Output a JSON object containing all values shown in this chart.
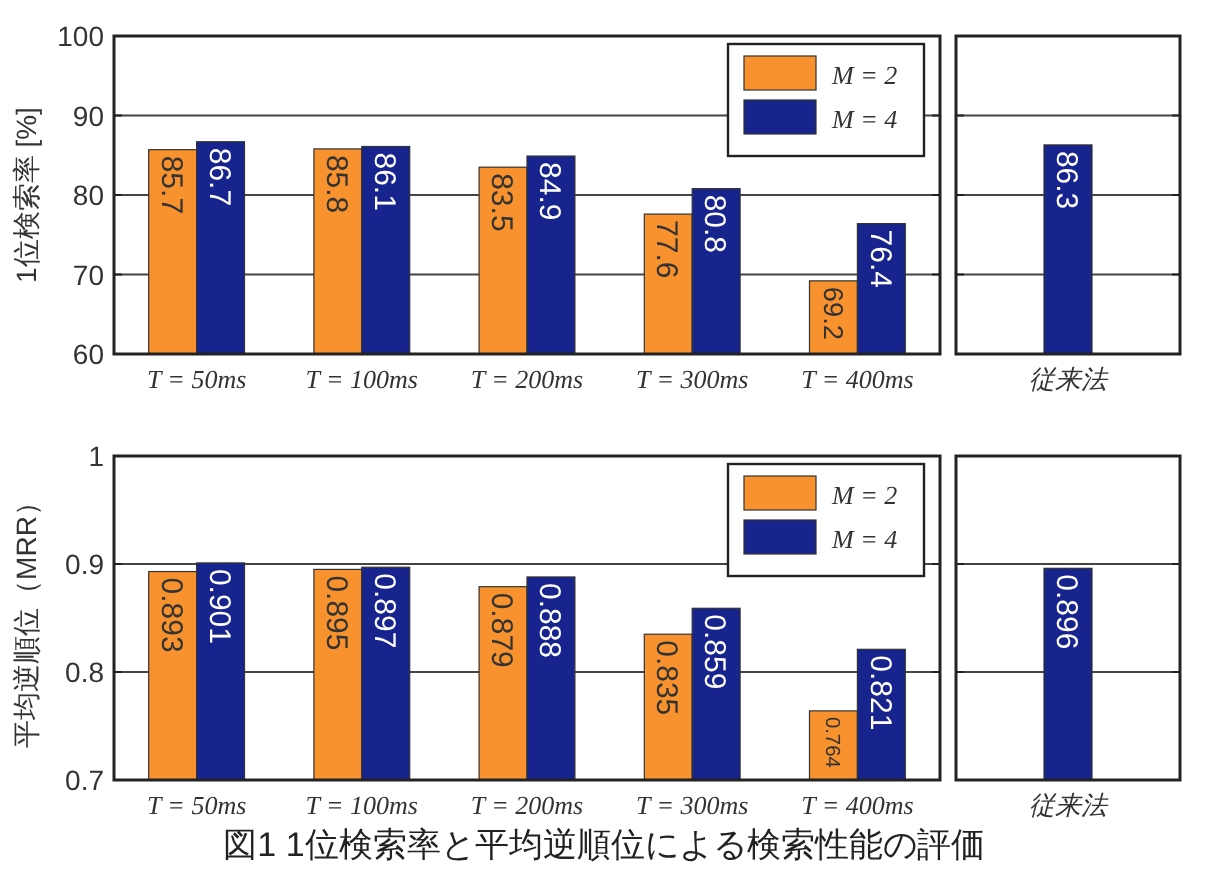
{
  "chart_data": [
    {
      "type": "bar",
      "ylabel": "1位検索率 [%]",
      "categories": [
        "T = 50ms",
        "T = 100ms",
        "T = 200ms",
        "T = 300ms",
        "T = 400ms"
      ],
      "series": [
        {
          "name": "M = 2",
          "color": "#f7922e",
          "values": [
            85.7,
            85.8,
            83.5,
            77.6,
            69.2
          ]
        },
        {
          "name": "M = 4",
          "color": "#17248e",
          "values": [
            86.7,
            86.1,
            84.9,
            80.8,
            76.4
          ]
        }
      ],
      "ylim": [
        60,
        100
      ],
      "yticks": [
        60,
        70,
        80,
        90,
        100
      ],
      "grid": "y",
      "legend": "top right",
      "data_labels": true
    },
    {
      "type": "bar",
      "categories": [
        "従来法"
      ],
      "series": [
        {
          "color": "#17248e",
          "values": [
            86.3
          ]
        }
      ],
      "ylim": [
        60,
        100
      ],
      "yticks": [
        60,
        70,
        80,
        90,
        100
      ],
      "grid": "y",
      "tick_labels": "x",
      "data_labels": true
    },
    {
      "type": "bar",
      "ylabel": "平均逆順位（MRR）",
      "categories": [
        "T = 50ms",
        "T = 100ms",
        "T = 200ms",
        "T = 300ms",
        "T = 400ms"
      ],
      "series": [
        {
          "name": "M = 2",
          "color": "#f7922e",
          "values": [
            0.893,
            0.895,
            0.879,
            0.835,
            0.764
          ]
        },
        {
          "name": "M = 4",
          "color": "#17248e",
          "values": [
            0.901,
            0.897,
            0.888,
            0.859,
            0.821
          ]
        }
      ],
      "ylim": [
        0.7,
        1
      ],
      "yticks": [
        0.7,
        0.8,
        0.9,
        1
      ],
      "grid": "y",
      "legend": "top right",
      "data_labels": true
    },
    {
      "type": "bar",
      "categories": [
        "従来法"
      ],
      "series": [
        {
          "color": "#17248e",
          "values": [
            0.896
          ]
        }
      ],
      "ylim": [
        0.7,
        1
      ],
      "yticks": [
        0.7,
        0.8,
        0.9,
        1
      ],
      "grid": "y",
      "tick_labels": "x",
      "data_labels": true,
      "annotations": [
        "図1 1位検索率と平均逆順位による検索性能の評価"
      ]
    }
  ]
}
